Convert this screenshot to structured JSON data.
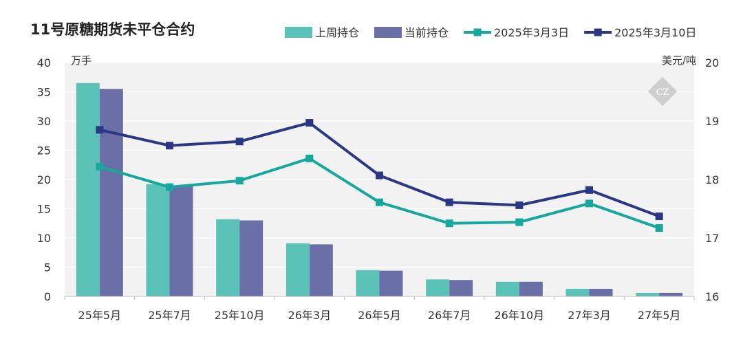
{
  "chart_data": {
    "type": "bar+line",
    "title": "11号原糖期货未平仓合约",
    "categories": [
      "25年5月",
      "25年7月",
      "25年10月",
      "26年3月",
      "26年5月",
      "26年7月",
      "26年10月",
      "27年3月",
      "27年5月"
    ],
    "bar_series": [
      {
        "name": "上周持仓",
        "color": "#5bc2b8",
        "values": [
          36.5,
          19.2,
          13.2,
          9.1,
          4.5,
          2.9,
          2.5,
          1.3,
          0.6
        ]
      },
      {
        "name": "当前持仓",
        "color": "#6a6fa8",
        "values": [
          35.5,
          19.0,
          13.0,
          8.9,
          4.4,
          2.8,
          2.5,
          1.3,
          0.6
        ]
      }
    ],
    "line_series": [
      {
        "name": "2025年3月3日",
        "color": "#16a89d",
        "values": [
          18.22,
          17.87,
          17.98,
          18.36,
          17.61,
          17.25,
          17.27,
          17.59,
          17.17
        ]
      },
      {
        "name": "2025年3月10日",
        "color": "#2b3785",
        "values": [
          18.85,
          18.58,
          18.65,
          18.97,
          18.07,
          17.61,
          17.56,
          17.82,
          17.37
        ]
      }
    ],
    "y_left": {
      "label": "万手",
      "min": 0,
      "max": 40,
      "ticks": [
        "0",
        "5",
        "10",
        "15",
        "20",
        "25",
        "30",
        "35",
        "40"
      ]
    },
    "y_right": {
      "label": "美元/吨",
      "min": 16,
      "max": 20,
      "ticks": [
        "16",
        "17",
        "18",
        "19",
        "20"
      ]
    },
    "plot_background": "#f2f2f2",
    "grid": true,
    "legend_position": "top-right",
    "watermark": "CZ"
  }
}
